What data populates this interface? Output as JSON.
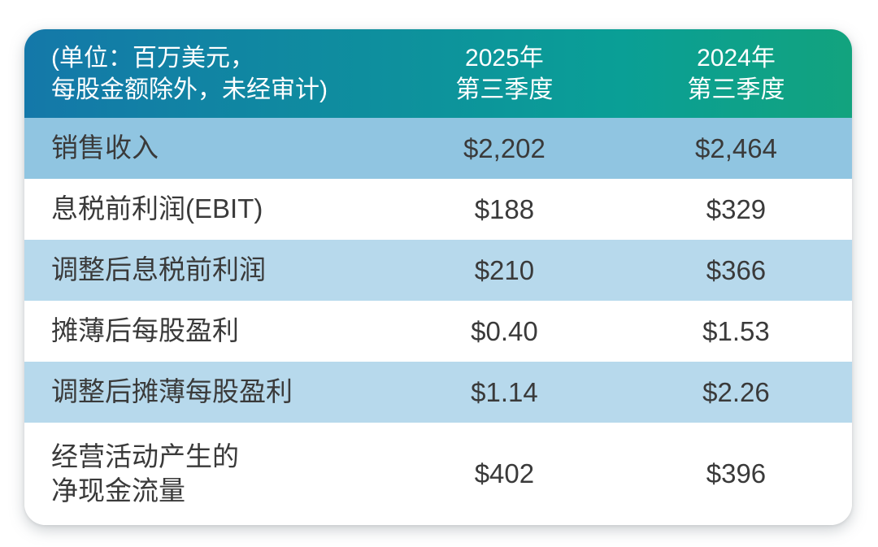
{
  "header": {
    "note_lines": [
      "(单位：百万美元，",
      "每股金额除外，未经审计)"
    ],
    "columns": [
      {
        "lines": [
          "2025年",
          "第三季度"
        ]
      },
      {
        "lines": [
          "2024年",
          "第三季度"
        ]
      }
    ]
  },
  "chart_data": {
    "type": "table",
    "title": "(单位：百万美元，每股金额除外，未经审计)",
    "columns": [
      "2025年第三季度",
      "2024年第三季度"
    ],
    "rows": [
      {
        "label": "销售收入",
        "label_lines": [
          "销售收入"
        ],
        "values": [
          "$2,202",
          "$2,464"
        ],
        "values_numeric": [
          2202,
          2464
        ]
      },
      {
        "label": "息税前利润(EBIT)",
        "label_lines": [
          "息税前利润(EBIT)"
        ],
        "values": [
          "$188",
          "$329"
        ],
        "values_numeric": [
          188,
          329
        ]
      },
      {
        "label": "调整后息税前利润",
        "label_lines": [
          "调整后息税前利润"
        ],
        "values": [
          "$210",
          "$366"
        ],
        "values_numeric": [
          210,
          366
        ]
      },
      {
        "label": "摊薄后每股盈利",
        "label_lines": [
          "摊薄后每股盈利"
        ],
        "values": [
          "$0.40",
          "$1.53"
        ],
        "values_numeric": [
          0.4,
          1.53
        ]
      },
      {
        "label": "调整后摊薄每股盈利",
        "label_lines": [
          "调整后摊薄每股盈利"
        ],
        "values": [
          "$1.14",
          "$2.26"
        ],
        "values_numeric": [
          1.14,
          2.26
        ]
      },
      {
        "label": "经营活动产生的净现金流量",
        "label_lines": [
          "经营活动产生的",
          "净现金流量"
        ],
        "values": [
          "$402",
          "$396"
        ],
        "values_numeric": [
          402,
          396
        ]
      }
    ]
  },
  "colors": {
    "header_gradient_start": "#1478a9",
    "header_gradient_mid": "#0a9f96",
    "header_gradient_end": "#12a37e",
    "header_text": "#ffffff",
    "row_blue_dark": "#90c5e1",
    "row_blue_light": "#b7d9ec",
    "row_white": "#ffffff",
    "body_text": "#3a3a3a",
    "page_background": "#ffffff"
  }
}
